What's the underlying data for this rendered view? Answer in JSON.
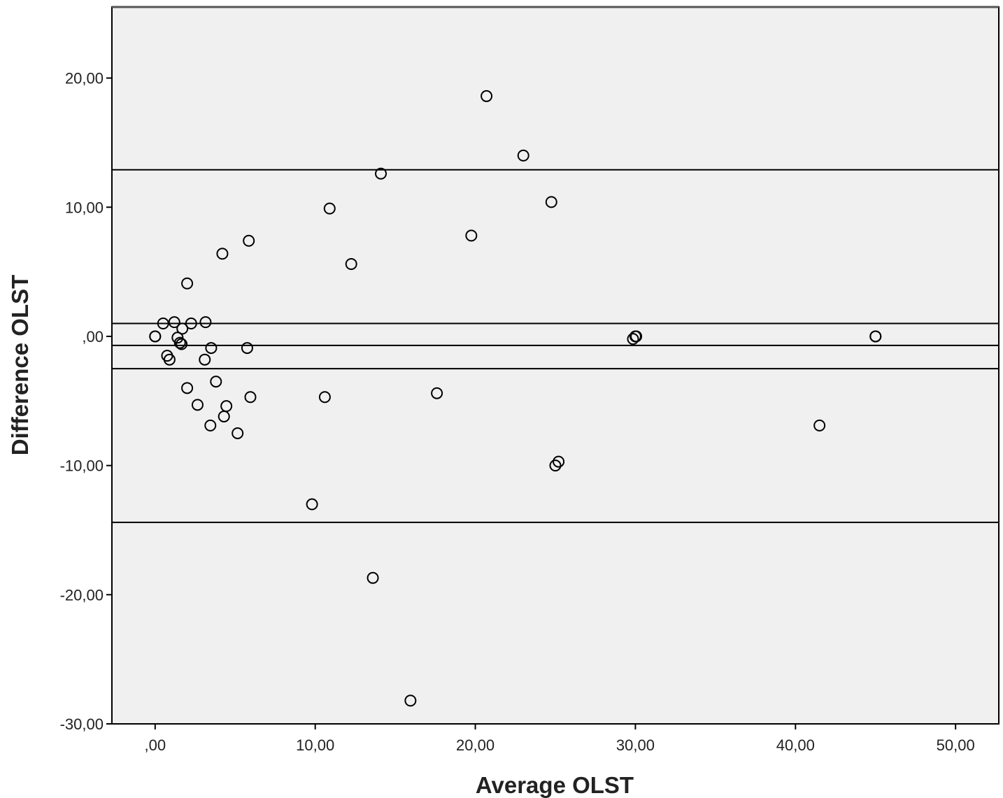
{
  "chart_data": {
    "type": "scatter",
    "xlabel": "Average OLST",
    "ylabel": "Difference OLST",
    "xlim": [
      -2.7,
      52.7
    ],
    "ylim": [
      -30,
      25.5
    ],
    "x_ticks": [
      0,
      10,
      20,
      30,
      40,
      50
    ],
    "x_tick_labels": [
      ",00",
      "10,00",
      "20,00",
      "30,00",
      "40,00",
      "50,00"
    ],
    "y_ticks": [
      20,
      10,
      0,
      -10,
      -20,
      -30
    ],
    "y_tick_labels": [
      "20,00",
      "10,00",
      ",00",
      "-10,00",
      "-20,00",
      "-30,00"
    ],
    "reference_lines_y": [
      12.9,
      1.0,
      -0.7,
      -2.5,
      -14.4
    ],
    "grid": false,
    "background": "#f0f0f0",
    "points": [
      {
        "x": 0.0,
        "y": 0.0
      },
      {
        "x": 0.0,
        "y": 0.0
      },
      {
        "x": 0.5,
        "y": 1.0
      },
      {
        "x": 1.2,
        "y": 1.1
      },
      {
        "x": 0.75,
        "y": -1.5
      },
      {
        "x": 0.9,
        "y": -1.8
      },
      {
        "x": 1.4,
        "y": -0.1
      },
      {
        "x": 1.55,
        "y": -0.5
      },
      {
        "x": 1.65,
        "y": -0.6
      },
      {
        "x": 1.7,
        "y": 0.6
      },
      {
        "x": 2.0,
        "y": 4.1
      },
      {
        "x": 2.0,
        "y": -4.0
      },
      {
        "x": 2.25,
        "y": 1.0
      },
      {
        "x": 2.65,
        "y": -5.3
      },
      {
        "x": 3.15,
        "y": 1.1
      },
      {
        "x": 3.1,
        "y": -1.8
      },
      {
        "x": 3.45,
        "y": -6.9
      },
      {
        "x": 3.5,
        "y": -0.9
      },
      {
        "x": 3.8,
        "y": -3.5
      },
      {
        "x": 4.2,
        "y": 6.4
      },
      {
        "x": 4.3,
        "y": -6.2
      },
      {
        "x": 4.45,
        "y": -5.4
      },
      {
        "x": 5.15,
        "y": -7.5
      },
      {
        "x": 5.75,
        "y": -0.9
      },
      {
        "x": 5.85,
        "y": 7.4
      },
      {
        "x": 5.95,
        "y": -4.7
      },
      {
        "x": 9.8,
        "y": -13.0
      },
      {
        "x": 10.6,
        "y": -4.7
      },
      {
        "x": 10.9,
        "y": 9.9
      },
      {
        "x": 12.25,
        "y": 5.6
      },
      {
        "x": 13.6,
        "y": -18.7
      },
      {
        "x": 14.1,
        "y": 12.6
      },
      {
        "x": 15.95,
        "y": -28.2
      },
      {
        "x": 17.6,
        "y": -4.4
      },
      {
        "x": 19.75,
        "y": 7.8
      },
      {
        "x": 20.7,
        "y": 18.6
      },
      {
        "x": 23.0,
        "y": 14.0
      },
      {
        "x": 24.75,
        "y": 10.4
      },
      {
        "x": 25.0,
        "y": -10.0
      },
      {
        "x": 25.2,
        "y": -9.7
      },
      {
        "x": 29.85,
        "y": -0.2
      },
      {
        "x": 30.0,
        "y": 0.0
      },
      {
        "x": 30.05,
        "y": 0.0
      },
      {
        "x": 41.5,
        "y": -6.9
      },
      {
        "x": 45.0,
        "y": 0.0
      },
      {
        "x": 45.0,
        "y": 0.0
      }
    ]
  }
}
